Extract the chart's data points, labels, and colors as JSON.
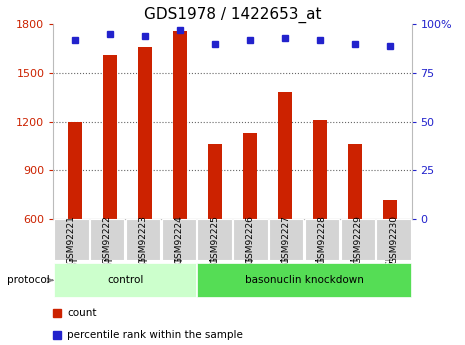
{
  "title": "GDS1978 / 1422653_at",
  "samples": [
    "GSM92221",
    "GSM92222",
    "GSM92223",
    "GSM92224",
    "GSM92225",
    "GSM92226",
    "GSM92227",
    "GSM92228",
    "GSM92229",
    "GSM92230"
  ],
  "counts": [
    1200,
    1610,
    1660,
    1760,
    1060,
    1130,
    1380,
    1210,
    1060,
    720
  ],
  "percentile_ranks": [
    92,
    95,
    94,
    97,
    90,
    92,
    93,
    92,
    90,
    89
  ],
  "bar_color": "#cc2200",
  "dot_color": "#2222cc",
  "ylim_left": [
    600,
    1800
  ],
  "yticks_left": [
    600,
    900,
    1200,
    1500,
    1800
  ],
  "grid_yticks": [
    900,
    1200,
    1500
  ],
  "ylim_right": [
    0,
    100
  ],
  "yticks_right": [
    0,
    25,
    50,
    75,
    100
  ],
  "groups": [
    {
      "label": "control",
      "start": 0,
      "end": 4,
      "color": "#ccffcc"
    },
    {
      "label": "basonuclin knockdown",
      "start": 4,
      "end": 10,
      "color": "#55dd55"
    }
  ],
  "protocol_label": "protocol",
  "legend_count_label": "count",
  "legend_pct_label": "percentile rank within the sample",
  "title_fontsize": 11,
  "tick_fontsize": 8,
  "label_fontsize": 8,
  "grid_color": "#666666",
  "bar_width": 0.4
}
